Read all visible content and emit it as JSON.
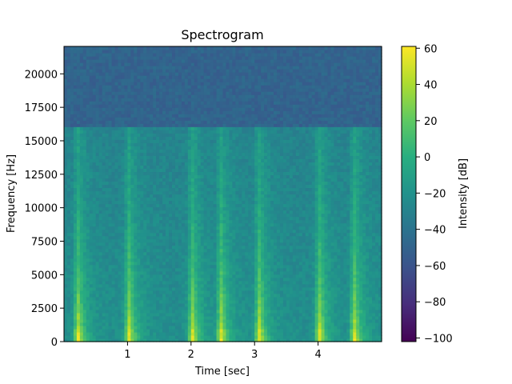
{
  "chart_data": {
    "type": "heatmap",
    "title": "Spectrogram",
    "xlabel": "Time [sec]",
    "ylabel": "Frequency [Hz]",
    "xlim": [
      0,
      5
    ],
    "ylim": [
      0,
      22050
    ],
    "x_ticks": [
      1,
      2,
      3,
      4
    ],
    "y_ticks": [
      0,
      2500,
      5000,
      7500,
      10000,
      12500,
      15000,
      17500,
      20000
    ],
    "colorbar": {
      "label": "Intensity [dB]",
      "range": [
        -102,
        61
      ],
      "ticks": [
        -100,
        -80,
        -60,
        -40,
        -20,
        0,
        20,
        40,
        60
      ],
      "colormap": "viridis"
    },
    "background_level_db": -50,
    "low_band_cutoff_hz": 16000,
    "low_band_level_db": -30,
    "onsets_sec": [
      0.2,
      1.0,
      2.0,
      2.45,
      3.05,
      4.0,
      4.55
    ],
    "onset_peak_db": 58,
    "grid": false,
    "legend": "none"
  }
}
